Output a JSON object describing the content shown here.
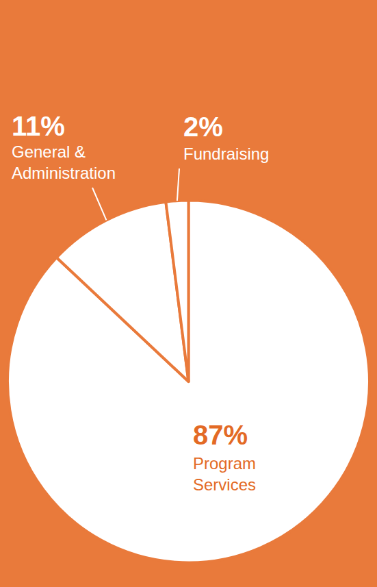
{
  "chart_data": {
    "type": "pie",
    "categories": [
      "Program Services",
      "General & Administration",
      "Fundraising"
    ],
    "values": [
      87,
      11,
      2
    ],
    "value_labels": [
      "87%",
      "11%",
      "2%"
    ],
    "colors": [
      "#ffffff",
      "#ffffff",
      "#ffffff"
    ],
    "data_labels": true
  }
}
